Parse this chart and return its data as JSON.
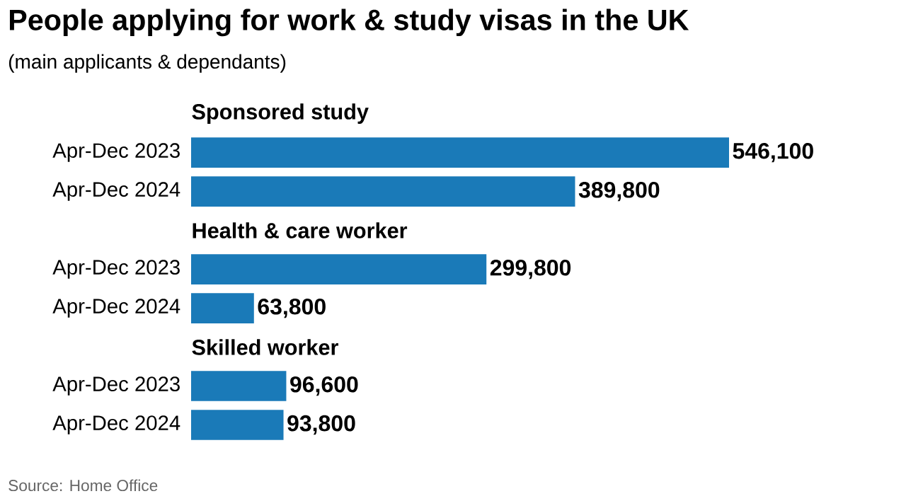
{
  "chart_data": {
    "type": "bar",
    "orientation": "horizontal",
    "title": "People applying for work & study visas in the UK",
    "subtitle": "(main applicants & dependants)",
    "categories": [
      "Sponsored study",
      "Apr-Dec 2023",
      "Apr-Dec 2024",
      "Health & care worker",
      "Apr-Dec 2023",
      "Apr-Dec 2024",
      "Skilled worker",
      "Apr-Dec 2023",
      "Apr-Dec 2024"
    ],
    "values": [
      null,
      546100,
      389800,
      null,
      299800,
      63800,
      null,
      96600,
      93800
    ],
    "value_labels": [
      null,
      "546,100",
      "389,800",
      null,
      "299,800",
      "63,800",
      null,
      "96,600",
      "93,800"
    ],
    "color": "#1a7ab8",
    "annotations": [
      "Source: Home Office"
    ]
  }
}
